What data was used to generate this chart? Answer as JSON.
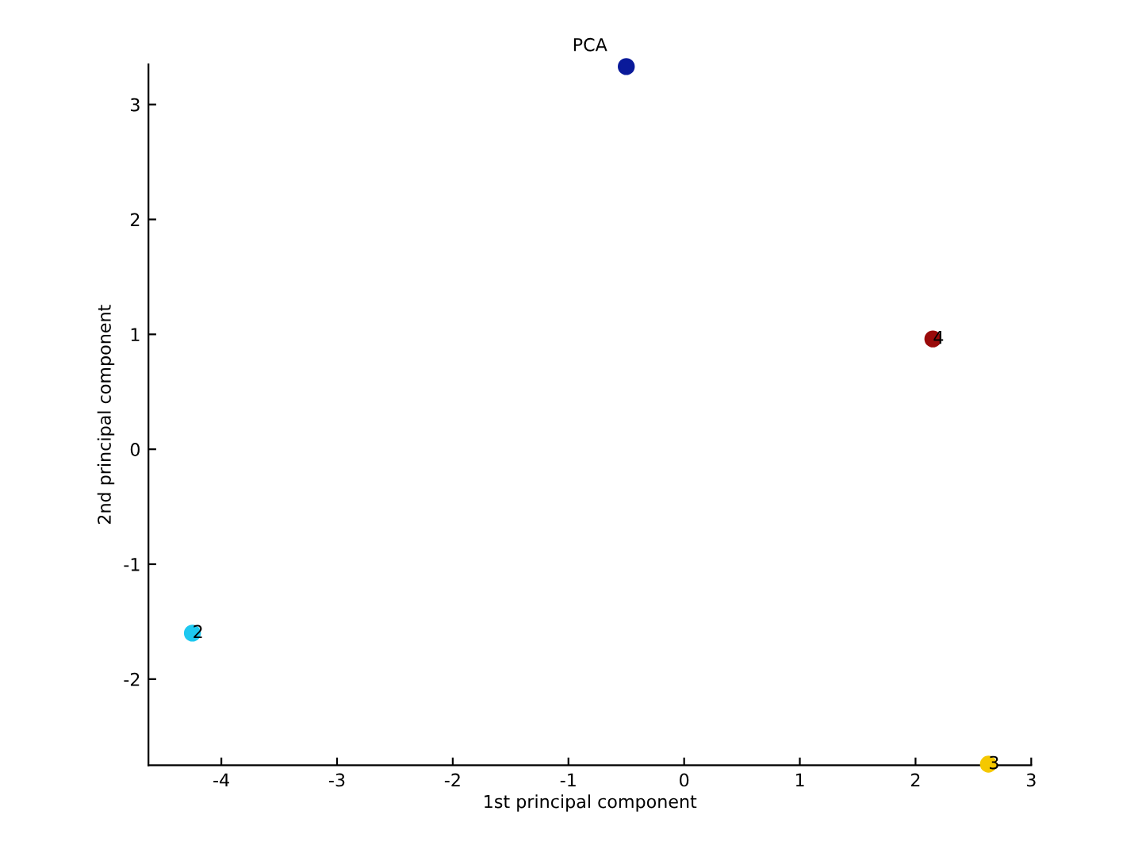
{
  "chart_data": {
    "type": "scatter",
    "title": "PCA",
    "xlabel": "1st principal component",
    "ylabel": "2nd principal component",
    "x": [
      -0.5,
      2.15,
      -4.25,
      2.63
    ],
    "values": [
      3.33,
      0.96,
      -1.6,
      -2.74
    ],
    "colors": [
      "#0a1a9a",
      "#9a0a0a",
      "#1ec8f0",
      "#f5c800"
    ],
    "annotations": [
      {
        "text": "4",
        "x": 2.15,
        "y": 0.96
      },
      {
        "text": "2",
        "x": -4.25,
        "y": -1.6
      },
      {
        "text": "3",
        "x": 2.63,
        "y": -2.74
      }
    ],
    "xlim": [
      -4.63,
      3
    ],
    "ylim": [
      -2.75,
      3.35
    ],
    "xticks": [
      -4,
      -3,
      -2,
      -1,
      0,
      1,
      2,
      3
    ],
    "yticks": [
      -2,
      -1,
      0,
      1,
      2,
      3
    ],
    "marker": "circle",
    "grid": false,
    "legend": false
  }
}
